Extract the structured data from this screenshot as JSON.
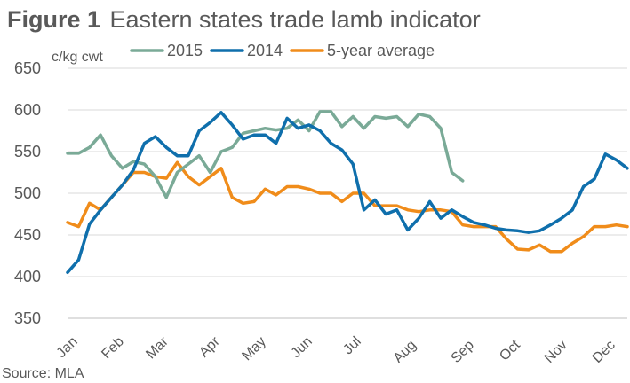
{
  "title": {
    "figure_label": "Figure 1",
    "text": "Eastern states trade lamb indicator"
  },
  "source": "Source: MLA",
  "chart_data": {
    "type": "line",
    "title": "Figure 1 Eastern states trade lamb indicator",
    "ylabel": "c/kg cwt",
    "xlabel": "",
    "ylim": [
      350,
      650
    ],
    "yticks": [
      350,
      400,
      450,
      500,
      550,
      600,
      650
    ],
    "grid": true,
    "legend_position": "top",
    "x_tick_labels": [
      "Jan",
      "Feb",
      "Mar",
      "Apr",
      "May",
      "Jun",
      "Jul",
      "Aug",
      "Sep",
      "Oct",
      "Nov",
      "Dec"
    ],
    "series": [
      {
        "name": "2015",
        "color": "#7aaa97",
        "x": [
          1,
          2,
          3,
          4,
          5,
          6,
          7,
          8,
          9,
          10,
          11,
          12,
          13,
          14,
          15,
          16,
          17,
          18,
          19,
          20,
          21,
          22,
          23,
          24,
          25,
          26,
          27,
          28,
          29,
          30,
          31,
          32,
          33,
          34,
          35,
          36,
          37
        ],
        "values": [
          548,
          548,
          555,
          570,
          545,
          530,
          538,
          535,
          520,
          495,
          525,
          535,
          545,
          525,
          550,
          555,
          572,
          575,
          578,
          576,
          578,
          588,
          575,
          598,
          598,
          580,
          592,
          578,
          592,
          590,
          592,
          580,
          595,
          592,
          578,
          525,
          515
        ]
      },
      {
        "name": "2014",
        "color": "#0f6fac",
        "x": [
          1,
          2,
          3,
          4,
          5,
          6,
          7,
          8,
          9,
          10,
          11,
          12,
          13,
          14,
          15,
          16,
          17,
          18,
          19,
          20,
          21,
          22,
          23,
          24,
          25,
          26,
          27,
          28,
          29,
          30,
          31,
          32,
          33,
          34,
          35,
          36,
          37,
          38,
          39,
          40,
          41,
          42,
          43,
          44,
          45,
          46,
          47,
          48,
          49,
          50,
          51,
          52
        ],
        "values": [
          405,
          420,
          463,
          480,
          495,
          510,
          528,
          560,
          568,
          555,
          545,
          545,
          575,
          585,
          597,
          582,
          565,
          570,
          570,
          560,
          590,
          578,
          582,
          575,
          560,
          552,
          535,
          480,
          492,
          475,
          480,
          456,
          470,
          490,
          470,
          480,
          472,
          465,
          462,
          458,
          456,
          455,
          453,
          455,
          462,
          470,
          480,
          508,
          517,
          547,
          540,
          530
        ]
      },
      {
        "name": "5-year average",
        "color": "#f08c1a",
        "x": [
          1,
          2,
          3,
          4,
          5,
          6,
          7,
          8,
          9,
          10,
          11,
          12,
          13,
          14,
          15,
          16,
          17,
          18,
          19,
          20,
          21,
          22,
          23,
          24,
          25,
          26,
          27,
          28,
          29,
          30,
          31,
          32,
          33,
          34,
          35,
          36,
          37,
          38,
          39,
          40,
          41,
          42,
          43,
          44,
          45,
          46,
          47,
          48,
          49,
          50,
          51,
          52
        ],
        "values": [
          465,
          460,
          488,
          480,
          495,
          510,
          525,
          525,
          520,
          518,
          537,
          520,
          510,
          520,
          530,
          495,
          488,
          490,
          505,
          498,
          508,
          508,
          505,
          500,
          500,
          490,
          500,
          500,
          485,
          485,
          485,
          480,
          478,
          480,
          480,
          478,
          462,
          460,
          460,
          460,
          445,
          433,
          432,
          438,
          430,
          430,
          440,
          448,
          460,
          460,
          462,
          460
        ]
      }
    ]
  }
}
